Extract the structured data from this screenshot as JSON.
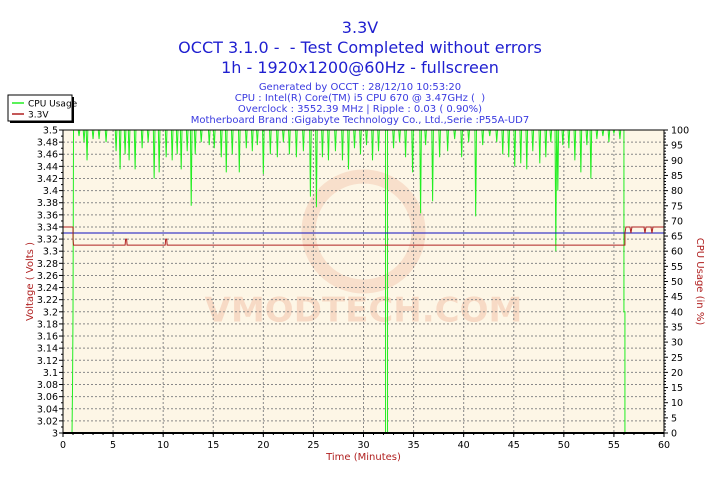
{
  "chart_data": {
    "type": "line",
    "title": "3.3V",
    "subtitle": [
      "OCCT 3.1.0 -  - Test Completed without errors",
      "1h - 1920x1200@60Hz - fullscreen"
    ],
    "info": [
      "Generated by OCCT : 28/12/10 10:53:20",
      "CPU : Intel(R) Core(TM) i5 CPU 670 @ 3.47GHz (  )",
      "Overclock : 3552.39 MHz | Ripple : 0.03 ( 0.90%)",
      "Motherboard Brand :Gigabyte Technology Co., Ltd.,Serie :P55A-UD7"
    ],
    "xlabel": "Time (Minutes)",
    "ylabel": "Voltage ( Volts )",
    "y2label": "CPU Usage (in %)",
    "xlim": [
      0,
      60
    ],
    "ylim": [
      3.0,
      3.5
    ],
    "y2lim": [
      0,
      100
    ],
    "xticks": [
      "0",
      "5",
      "10",
      "15",
      "20",
      "25",
      "30",
      "35",
      "40",
      "45",
      "50",
      "55",
      "60"
    ],
    "yticks": [
      "3",
      "3.02",
      "3.04",
      "3.06",
      "3.08",
      "3.1",
      "3.12",
      "3.14",
      "3.16",
      "3.18",
      "3.2",
      "3.22",
      "3.24",
      "3.26",
      "3.28",
      "3.3",
      "3.32",
      "3.34",
      "3.36",
      "3.38",
      "3.4",
      "3.42",
      "3.44",
      "3.46",
      "3.48",
      "3.5"
    ],
    "y2ticks": [
      "0",
      "5",
      "10",
      "15",
      "20",
      "25",
      "30",
      "35",
      "40",
      "45",
      "50",
      "55",
      "60",
      "65",
      "70",
      "75",
      "80",
      "85",
      "90",
      "95",
      "100"
    ],
    "grid": true,
    "legend_position": "top-left",
    "reference_line": {
      "value": 3.33,
      "color": "#1010c0"
    },
    "series": [
      {
        "name": "CPU Usage",
        "color": "#22ee22",
        "axis": "right",
        "points": [
          [
            0,
            0
          ],
          [
            0.9,
            0
          ],
          [
            0.95,
            15
          ],
          [
            1.0,
            40
          ],
          [
            1.05,
            100
          ],
          [
            2.3,
            100
          ]
        ],
        "dips": [
          [
            1.6,
            98
          ],
          [
            2.1,
            96
          ],
          [
            2.4,
            90
          ],
          [
            3.0,
            97
          ],
          [
            3.6,
            97
          ],
          [
            4.3,
            96
          ],
          [
            5.3,
            93
          ],
          [
            5.7,
            87
          ],
          [
            6.2,
            92
          ],
          [
            6.6,
            90
          ],
          [
            7.2,
            87
          ],
          [
            7.9,
            94
          ],
          [
            8.5,
            96
          ],
          [
            9.1,
            84
          ],
          [
            9.6,
            86
          ],
          [
            10.3,
            91
          ],
          [
            10.9,
            90
          ],
          [
            11.4,
            92
          ],
          [
            11.8,
            87
          ],
          [
            12.4,
            93
          ],
          [
            12.8,
            75
          ],
          [
            13.2,
            92
          ],
          [
            13.8,
            96
          ],
          [
            14.6,
            95
          ],
          [
            15.1,
            94
          ],
          [
            15.8,
            91
          ],
          [
            16.3,
            86
          ],
          [
            16.9,
            92
          ],
          [
            17.6,
            86
          ],
          [
            18.3,
            94
          ],
          [
            18.9,
            93
          ],
          [
            19.4,
            95
          ],
          [
            20.0,
            85.5
          ],
          [
            20.7,
            92
          ],
          [
            21.4,
            91
          ],
          [
            22.0,
            96
          ],
          [
            22.6,
            92
          ],
          [
            23.3,
            91
          ],
          [
            24.0,
            93
          ],
          [
            24.7,
            78
          ],
          [
            25.3,
            74.5
          ],
          [
            25.9,
            91
          ],
          [
            26.5,
            90
          ],
          [
            27.2,
            93
          ],
          [
            27.9,
            90
          ],
          [
            28.5,
            87
          ],
          [
            29.1,
            94
          ],
          [
            29.7,
            92
          ],
          [
            30.3,
            95
          ],
          [
            30.9,
            90
          ],
          [
            31.5,
            93
          ],
          [
            33.0,
            94
          ],
          [
            33.6,
            96
          ],
          [
            34.2,
            91
          ],
          [
            34.9,
            86
          ],
          [
            35.7,
            72.5
          ],
          [
            36.2,
            95
          ],
          [
            36.9,
            76.5
          ],
          [
            37.6,
            91
          ],
          [
            38.4,
            93
          ],
          [
            39.1,
            97
          ],
          [
            39.8,
            91
          ],
          [
            40.5,
            96
          ],
          [
            41.2,
            71.5
          ],
          [
            41.9,
            95
          ],
          [
            42.6,
            98
          ],
          [
            43.3,
            96
          ],
          [
            43.9,
            92
          ],
          [
            44.5,
            91
          ],
          [
            45.1,
            88
          ],
          [
            45.7,
            89
          ],
          [
            46.3,
            87
          ],
          [
            46.9,
            93
          ],
          [
            47.6,
            89
          ],
          [
            48.2,
            91
          ],
          [
            48.7,
            96
          ],
          [
            49.2,
            60
          ],
          [
            49.4,
            80
          ],
          [
            49.9,
            95
          ],
          [
            50.5,
            94
          ],
          [
            51.1,
            90
          ],
          [
            51.7,
            86
          ],
          [
            52.3,
            95
          ],
          [
            52.7,
            84
          ],
          [
            53.3,
            97
          ],
          [
            53.9,
            98
          ],
          [
            54.5,
            96
          ],
          [
            55.0,
            99
          ],
          [
            55.6,
            97
          ]
        ],
        "drops": [
          [
            32.2,
            32.4,
            0
          ],
          [
            56.0,
            56.1,
            40
          ]
        ],
        "end": [
          [
            56.1,
            0
          ],
          [
            60,
            0
          ]
        ]
      },
      {
        "name": "3.3V",
        "color": "#b02020",
        "axis": "left",
        "points": [
          [
            0,
            3.34
          ],
          [
            1.0,
            3.34
          ],
          [
            1.0,
            3.32
          ],
          [
            1.05,
            3.31
          ],
          [
            6.2,
            3.31
          ],
          [
            6.25,
            3.32
          ],
          [
            6.35,
            3.32
          ],
          [
            6.4,
            3.31
          ],
          [
            10.2,
            3.31
          ],
          [
            10.25,
            3.32
          ],
          [
            10.35,
            3.32
          ],
          [
            10.4,
            3.31
          ],
          [
            56.1,
            3.31
          ],
          [
            56.1,
            3.33
          ],
          [
            56.2,
            3.34
          ],
          [
            56.6,
            3.34
          ],
          [
            56.7,
            3.33
          ],
          [
            56.8,
            3.34
          ],
          [
            58.0,
            3.34
          ],
          [
            58.1,
            3.33
          ],
          [
            58.2,
            3.34
          ],
          [
            58.7,
            3.34
          ],
          [
            58.8,
            3.33
          ],
          [
            58.9,
            3.34
          ],
          [
            60,
            3.34
          ]
        ]
      }
    ],
    "watermark": "VMODTECH.COM"
  }
}
